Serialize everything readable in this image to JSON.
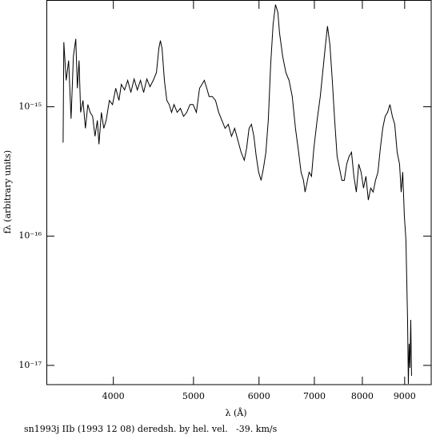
{
  "chart_data": {
    "type": "line",
    "xlabel": "λ (Å)",
    "ylabel": "fλ (arbitrary units)",
    "caption": "sn1993j IIb (1993 12 08) deredsh. by hel. vel.   -39. km/s",
    "xscale": "log",
    "yscale": "log",
    "xlim": [
      3320,
      9690
    ],
    "ylim": [
      7.1e-18,
      6.6e-15
    ],
    "xticks": [
      4000,
      5000,
      6000,
      7000,
      8000,
      9000
    ],
    "yticks": [
      {
        "value": 1e-17,
        "label": "10⁻¹⁷"
      },
      {
        "value": 1e-16,
        "label": "10⁻¹⁶"
      },
      {
        "value": 1e-15,
        "label": "10⁻¹⁵"
      }
    ],
    "x": [
      3478,
      3485,
      3508,
      3532,
      3556,
      3579,
      3603,
      3619,
      3636,
      3652,
      3676,
      3701,
      3726,
      3750,
      3776,
      3801,
      3826,
      3843,
      3869,
      3895,
      3921,
      3956,
      3991,
      4027,
      4063,
      4090,
      4127,
      4163,
      4200,
      4238,
      4276,
      4314,
      4352,
      4391,
      4430,
      4470,
      4510,
      4540,
      4560,
      4581,
      4611,
      4642,
      4673,
      4704,
      4736,
      4778,
      4821,
      4864,
      4907,
      4951,
      4995,
      5040,
      5085,
      5119,
      5153,
      5188,
      5222,
      5269,
      5316,
      5363,
      5411,
      5460,
      5508,
      5558,
      5607,
      5657,
      5708,
      5759,
      5797,
      5836,
      5875,
      5915,
      5954,
      5994,
      6035,
      6075,
      6116,
      6157,
      6198,
      6240,
      6282,
      6324,
      6352,
      6409,
      6466,
      6524,
      6582,
      6641,
      6700,
      6745,
      6791,
      6821,
      6852,
      6898,
      6944,
      6990,
      7053,
      7116,
      7164,
      7212,
      7260,
      7309,
      7358,
      7407,
      7457,
      7507,
      7557,
      7608,
      7659,
      7711,
      7762,
      7814,
      7867,
      7920,
      7973,
      8026,
      8080,
      8134,
      8189,
      8244,
      8299,
      8355,
      8411,
      8467,
      8524,
      8581,
      8639,
      8697,
      8755,
      8814,
      8873,
      8913,
      8952,
      8992,
      9032,
      9073,
      9093,
      9113,
      9134,
      9154,
      9174
    ],
    "series": [
      {
        "color": "#000000",
        "values": [
          5.28e-16,
          3.16e-15,
          1.6e-15,
          2.28e-15,
          8.08e-16,
          2.45e-15,
          3.35e-15,
          1.39e-15,
          2.28e-15,
          9.05e-16,
          1.12e-15,
          6.81e-16,
          1.04e-15,
          9.05e-16,
          8.43e-16,
          5.91e-16,
          7.85e-16,
          5.13e-16,
          9.05e-16,
          6.81e-16,
          7.85e-16,
          1.12e-15,
          1.04e-15,
          1.39e-15,
          1.12e-15,
          1.49e-15,
          1.35e-15,
          1.6e-15,
          1.29e-15,
          1.64e-15,
          1.35e-15,
          1.6e-15,
          1.29e-15,
          1.64e-15,
          1.43e-15,
          1.6e-15,
          1.84e-15,
          2.82e-15,
          3.25e-15,
          2.82e-15,
          1.6e-15,
          1.12e-15,
          1.04e-15,
          9.05e-16,
          1.04e-15,
          9.05e-16,
          9.72e-16,
          8.43e-16,
          9.05e-16,
          1.04e-15,
          1.04e-15,
          9.05e-16,
          1.39e-15,
          1.49e-15,
          1.6e-15,
          1.39e-15,
          1.2e-15,
          1.2e-15,
          1.12e-15,
          9.05e-16,
          7.85e-16,
          6.81e-16,
          7.32e-16,
          5.91e-16,
          6.81e-16,
          5.51e-16,
          4.45e-16,
          3.86e-16,
          4.78e-16,
          6.81e-16,
          7.32e-16,
          5.91e-16,
          4.14e-16,
          3.12e-16,
          2.7e-16,
          3.35e-16,
          4.45e-16,
          7.85e-16,
          2.12e-15,
          4.32e-15,
          6.17e-15,
          5.35e-15,
          3.75e-15,
          2.45e-15,
          1.84e-15,
          1.6e-15,
          1.2e-15,
          6.81e-16,
          4.45e-16,
          3.12e-16,
          2.7e-16,
          2.19e-16,
          2.52e-16,
          3.12e-16,
          2.9e-16,
          4.78e-16,
          7.85e-16,
          1.2e-15,
          1.84e-15,
          2.82e-15,
          4.2e-15,
          3.03e-15,
          1.6e-15,
          7.85e-16,
          4.14e-16,
          3.35e-16,
          2.7e-16,
          2.7e-16,
          3.6e-16,
          4.14e-16,
          4.45e-16,
          2.9e-16,
          2.19e-16,
          3.6e-16,
          3.12e-16,
          2.35e-16,
          2.9e-16,
          1.9e-16,
          2.35e-16,
          2.19e-16,
          2.7e-16,
          3.12e-16,
          4.78e-16,
          6.81e-16,
          8.43e-16,
          9.05e-16,
          1.04e-15,
          8.43e-16,
          7.32e-16,
          4.45e-16,
          3.6e-16,
          2.19e-16,
          3.12e-16,
          1.43e-16,
          9.31e-17,
          2.25e-17,
          7.2e-18,
          1.47e-17,
          9.58e-18,
          2.25e-17,
          8.31e-18
        ]
      }
    ]
  }
}
